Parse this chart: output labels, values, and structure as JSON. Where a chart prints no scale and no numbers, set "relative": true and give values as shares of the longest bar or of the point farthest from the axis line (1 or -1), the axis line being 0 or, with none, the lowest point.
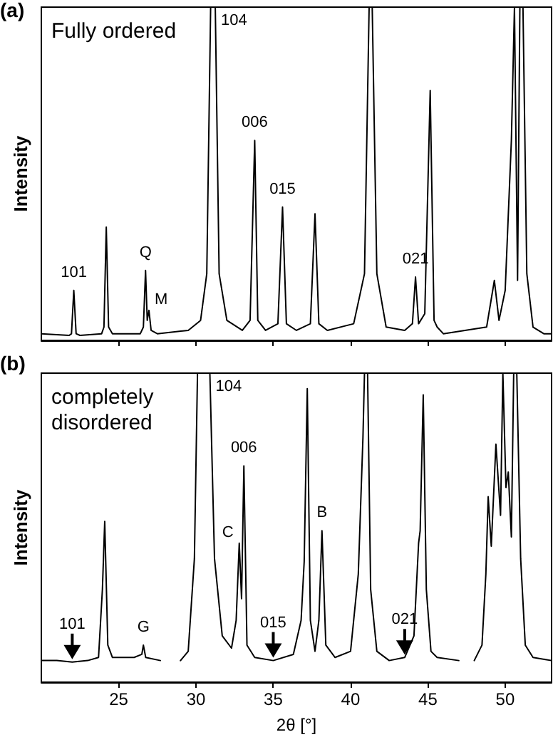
{
  "chart_data": [
    {
      "type": "line",
      "ylabel": "Intensity",
      "relative": true,
      "color": "#000000",
      "xlim": [
        20,
        53
      ],
      "xticks": [
        25,
        30,
        35,
        40,
        45,
        50
      ],
      "tick_labels": false,
      "x": [
        20,
        21.8,
        21.95,
        22.1,
        22.25,
        22.5,
        23.9,
        24.05,
        24.2,
        24.35,
        24.6,
        26.4,
        26.6,
        26.74,
        26.85,
        26.96,
        27.1,
        27.5,
        29.5,
        30.3,
        30.7,
        30.95,
        31.25,
        31.5,
        32,
        33,
        33.5,
        33.8,
        34.0,
        34.5,
        35.3,
        35.6,
        35.85,
        36.5,
        37.4,
        37.7,
        37.95,
        38.5,
        40.2,
        40.9,
        41.2,
        41.4,
        41.7,
        42.3,
        43.5,
        44.0,
        44.2,
        44.4,
        44.8,
        45.15,
        45.4,
        45.6,
        46,
        48.8,
        49.3,
        49.6,
        50.0,
        50.4,
        50.6,
        50.8,
        50.95,
        51.15,
        51.4,
        51.8,
        52.5,
        53
      ],
      "values": [
        0.02,
        0.015,
        0.02,
        0.15,
        0.02,
        0.015,
        0.02,
        0.04,
        0.34,
        0.04,
        0.02,
        0.02,
        0.04,
        0.21,
        0.06,
        0.09,
        0.03,
        0.02,
        0.03,
        0.06,
        0.2,
        1,
        1,
        0.2,
        0.06,
        0.03,
        0.06,
        0.6,
        0.06,
        0.03,
        0.05,
        0.4,
        0.05,
        0.03,
        0.05,
        0.38,
        0.05,
        0.03,
        0.05,
        0.2,
        1,
        1,
        0.2,
        0.04,
        0.03,
        0.05,
        0.19,
        0.05,
        0.08,
        0.75,
        0.06,
        0.04,
        0.02,
        0.04,
        0.18,
        0.06,
        0.15,
        0.6,
        1,
        0.18,
        1,
        1,
        0.2,
        0.04,
        0.02,
        0.02
      ],
      "annotations": [
        "(a)",
        "Fully ordered",
        {
          "text": "101",
          "x": 22.1,
          "y": 0.15
        },
        {
          "text": "Q",
          "x": 26.74,
          "y": 0.21
        },
        {
          "text": "M",
          "x": 26.96,
          "y": 0.09
        },
        {
          "text": "104",
          "x": 31.25,
          "y": 1
        },
        {
          "text": "006",
          "x": 33.8,
          "y": 0.6
        },
        {
          "text": "015",
          "x": 35.6,
          "y": 0.4
        },
        {
          "text": "021",
          "x": 44.2,
          "y": 0.19
        }
      ]
    },
    {
      "type": "line",
      "ylabel": "Intensity",
      "xlabel": "2θ [°]",
      "relative": true,
      "color": "#000000",
      "xlim": [
        20,
        53
      ],
      "xticks": [
        25,
        30,
        35,
        40,
        45,
        50
      ],
      "tick_labels": "x",
      "x": [
        20,
        21,
        22,
        23,
        23.7,
        23.95,
        24.1,
        24.3,
        24.6,
        26,
        26.5,
        26.6,
        26.75,
        27.7,
        28.3,
        29.0,
        29.5,
        29.9,
        30.1,
        30.9,
        31.2,
        31.7,
        32.3,
        32.6,
        32.8,
        32.95,
        33.1,
        33.3,
        33.8,
        35,
        36.3,
        36.8,
        37.0,
        37.2,
        37.4,
        37.7,
        37.95,
        38.15,
        38.4,
        39,
        40,
        40.5,
        40.8,
        40.9,
        41.1,
        41.3,
        41.7,
        42.5,
        43.5,
        44.1,
        44.4,
        44.5,
        44.7,
        44.9,
        45.2,
        45.6,
        47.0,
        47.5,
        48.0,
        48.5,
        48.75,
        48.9,
        49.1,
        49.4,
        49.7,
        49.85,
        50.05,
        50.2,
        50.4,
        50.55,
        50.75,
        51.0,
        51.3,
        51.8,
        53
      ],
      "values": [
        0.07,
        0.07,
        0.065,
        0.07,
        0.08,
        0.3,
        0.52,
        0.12,
        0.08,
        0.08,
        0.09,
        0.12,
        0.08,
        0.07,
        null,
        0.07,
        0.1,
        0.4,
        1,
        1,
        0.4,
        0.15,
        0.11,
        0.2,
        0.45,
        0.27,
        0.7,
        0.12,
        0.08,
        0.07,
        0.09,
        0.2,
        0.39,
        0.95,
        0.2,
        0.1,
        0.2,
        0.49,
        0.12,
        0.08,
        0.1,
        0.35,
        0.79,
        1,
        1,
        0.3,
        0.1,
        0.07,
        0.08,
        0.15,
        0.45,
        0.49,
        0.93,
        0.3,
        0.1,
        0.08,
        0.07,
        null,
        0.07,
        0.12,
        0.35,
        0.6,
        0.44,
        0.77,
        0.54,
        1,
        0.63,
        0.68,
        0.47,
        1,
        1,
        0.4,
        0.12,
        0.08,
        0.07
      ],
      "annotations": [
        "(b)",
        "completely\ndisordered",
        {
          "text": "104",
          "x": 30.9,
          "y": 1
        },
        {
          "text": "C",
          "x": 32.8,
          "y": 0.45
        },
        {
          "text": "006",
          "x": 33.1,
          "y": 0.7
        },
        {
          "text": "B",
          "x": 38.15,
          "y": 0.49
        },
        {
          "text": "G",
          "x": 26.6,
          "y": 0.12
        },
        {
          "text": "101",
          "x": 22,
          "y": 0.065
        },
        {
          "text": "015",
          "x": 35,
          "y": 0.07
        },
        {
          "text": "021",
          "x": 43.5,
          "y": 0.08
        }
      ]
    }
  ]
}
